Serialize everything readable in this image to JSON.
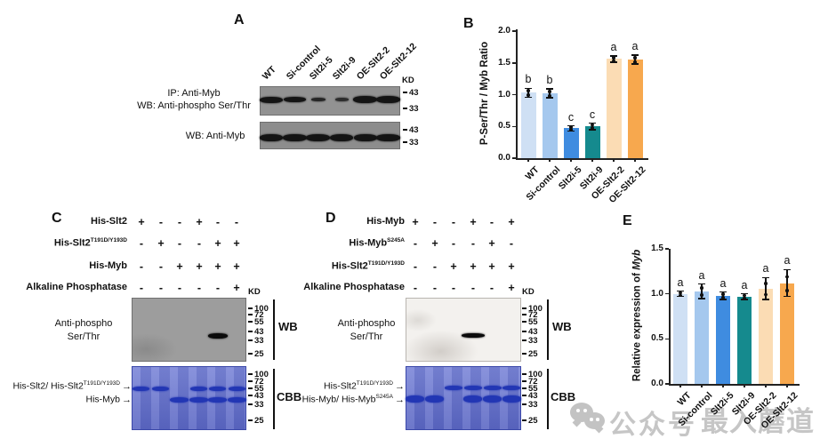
{
  "figure": {
    "panels": {
      "A": {
        "label": "A",
        "kd": "KD",
        "lane_labels": [
          "WT",
          "Si-control",
          "Slt2i-5",
          "Slt2i-9",
          "OE-Slt2-2",
          "OE-Slt2-12"
        ],
        "ip_label": "IP: Anti-Myb",
        "wb_phospho_label": "WB: Anti-phospho Ser/Thr",
        "wb_myb_label": "WB: Anti-Myb",
        "blot1_markers": [
          "43",
          "33"
        ],
        "blot2_markers": [
          "43",
          "33"
        ]
      },
      "B": {
        "label": "B"
      },
      "C": {
        "label": "C",
        "kd": "KD",
        "reagents": [
          {
            "name": "His-Slt2",
            "sup": "",
            "values": [
              "+",
              "-",
              "-",
              "+",
              "-",
              "-"
            ]
          },
          {
            "name": "His-Slt2",
            "sup": "T191D/Y193D",
            "values": [
              "-",
              "+",
              "-",
              "-",
              "+",
              "+"
            ]
          },
          {
            "name": "His-Myb",
            "sup": "",
            "values": [
              "-",
              "-",
              "+",
              "+",
              "+",
              "+"
            ]
          },
          {
            "name": "Alkaline Phosphatase",
            "sup": "",
            "values": [
              "-",
              "-",
              "-",
              "-",
              "-",
              "+"
            ]
          }
        ],
        "wb_label_line1": "Anti-phospho",
        "wb_label_line2": "Ser/Thr",
        "markers": [
          "100",
          "72",
          "55",
          "43",
          "33",
          "25"
        ],
        "side_wb": "WB",
        "side_cbb": "CBB",
        "arrow_upper": {
          "text": "His-Slt2/ His-Slt2",
          "sup": "T191D/Y193D"
        },
        "arrow_lower": {
          "text": "His-Myb",
          "sup": ""
        }
      },
      "D": {
        "label": "D",
        "kd": "KD",
        "reagents": [
          {
            "name": "His-Myb",
            "sup": "",
            "values": [
              "+",
              "-",
              "-",
              "+",
              "-",
              "+"
            ]
          },
          {
            "name": "His-Myb",
            "sup": "S245A",
            "values": [
              "-",
              "+",
              "-",
              "-",
              "+",
              "-"
            ]
          },
          {
            "name": "His-Slt2",
            "sup": "T191D/Y193D",
            "values": [
              "-",
              "-",
              "+",
              "+",
              "+",
              "+"
            ]
          },
          {
            "name": "Alkaline Phosphatase",
            "sup": "",
            "values": [
              "-",
              "-",
              "-",
              "-",
              "-",
              "+"
            ]
          }
        ],
        "wb_label_line1": "Anti-phospho",
        "wb_label_line2": "Ser/Thr",
        "markers": [
          "100",
          "72",
          "55",
          "43",
          "33",
          "25"
        ],
        "side_wb": "WB",
        "side_cbb": "CBB",
        "arrow_upper": {
          "text": "His-Slt2",
          "sup": "T191D/Y193D"
        },
        "arrow_lower": {
          "text": "His-Myb/ His-Myb",
          "sup": "S245A"
        }
      },
      "E": {
        "label": "E"
      }
    },
    "watermark": {
      "label": "公众号",
      "name": "最入蘑道"
    }
  },
  "chart_data": [
    {
      "type": "bar",
      "panel": "B",
      "categories": [
        "WT",
        "Si-control",
        "Slt2i-5",
        "Slt2i-9",
        "OE-Slt2-2",
        "OE-Slt2-12"
      ],
      "values": [
        1.03,
        1.02,
        0.47,
        0.5,
        1.56,
        1.55
      ],
      "errors": [
        0.07,
        0.07,
        0.04,
        0.05,
        0.05,
        0.07
      ],
      "sig_letters": [
        "b",
        "b",
        "c",
        "c",
        "a",
        "a"
      ],
      "xlabel": "",
      "ylabel": "P-Ser/Thr / Myb Ratio",
      "ylim": [
        0,
        2.0
      ],
      "yticks": [
        "0.0",
        "0.5",
        "1.0",
        "1.5",
        "2.0"
      ],
      "grid": false,
      "legend": "none",
      "bar_colors": [
        "#cfe0f4",
        "#a5c8ee",
        "#3f8ce0",
        "#158a8e",
        "#fbdcb4",
        "#f7a84e"
      ]
    },
    {
      "type": "bar",
      "panel": "E",
      "categories": [
        "WT",
        "Si-control",
        "Slt2i-5",
        "Slt2i-9",
        "OE-Slt2-2",
        "OE-Slt2-12"
      ],
      "values": [
        1.0,
        1.03,
        0.98,
        0.97,
        1.06,
        1.12
      ],
      "errors": [
        0.03,
        0.08,
        0.04,
        0.03,
        0.12,
        0.15
      ],
      "sig_letters": [
        "a",
        "a",
        "a",
        "a",
        "a",
        "a"
      ],
      "xlabel": "",
      "ylabel": "Relative expression of Myb",
      "ylabel_prefix": "Relative expression of ",
      "ylabel_italic": "Myb",
      "ylim": [
        0,
        1.5
      ],
      "yticks": [
        "0.0",
        "0.5",
        "1.0",
        "1.5"
      ],
      "grid": false,
      "legend": "none",
      "bar_colors": [
        "#cfe0f4",
        "#a5c8ee",
        "#3f8ce0",
        "#158a8e",
        "#fbdcb4",
        "#f7a84e"
      ]
    }
  ],
  "blot_data": {
    "A_top_band_lanes": [
      1,
      2,
      3,
      4,
      5,
      6
    ],
    "A_top_weak_lanes": [
      3,
      4
    ],
    "A_bottom_band_lanes": [
      1,
      2,
      3,
      4,
      5,
      6
    ],
    "C_wb_band_lanes": [
      5
    ],
    "C_cbb_upper_band_lanes": [
      1,
      2,
      4,
      5,
      6
    ],
    "C_cbb_lower_band_lanes": [
      3,
      4,
      5,
      6
    ],
    "D_wb_band_lanes": [
      4
    ],
    "D_cbb_upper_band_lanes": [
      3,
      4,
      5,
      6
    ],
    "D_cbb_lower_band_lanes": [
      1,
      2,
      4,
      5,
      6
    ]
  }
}
